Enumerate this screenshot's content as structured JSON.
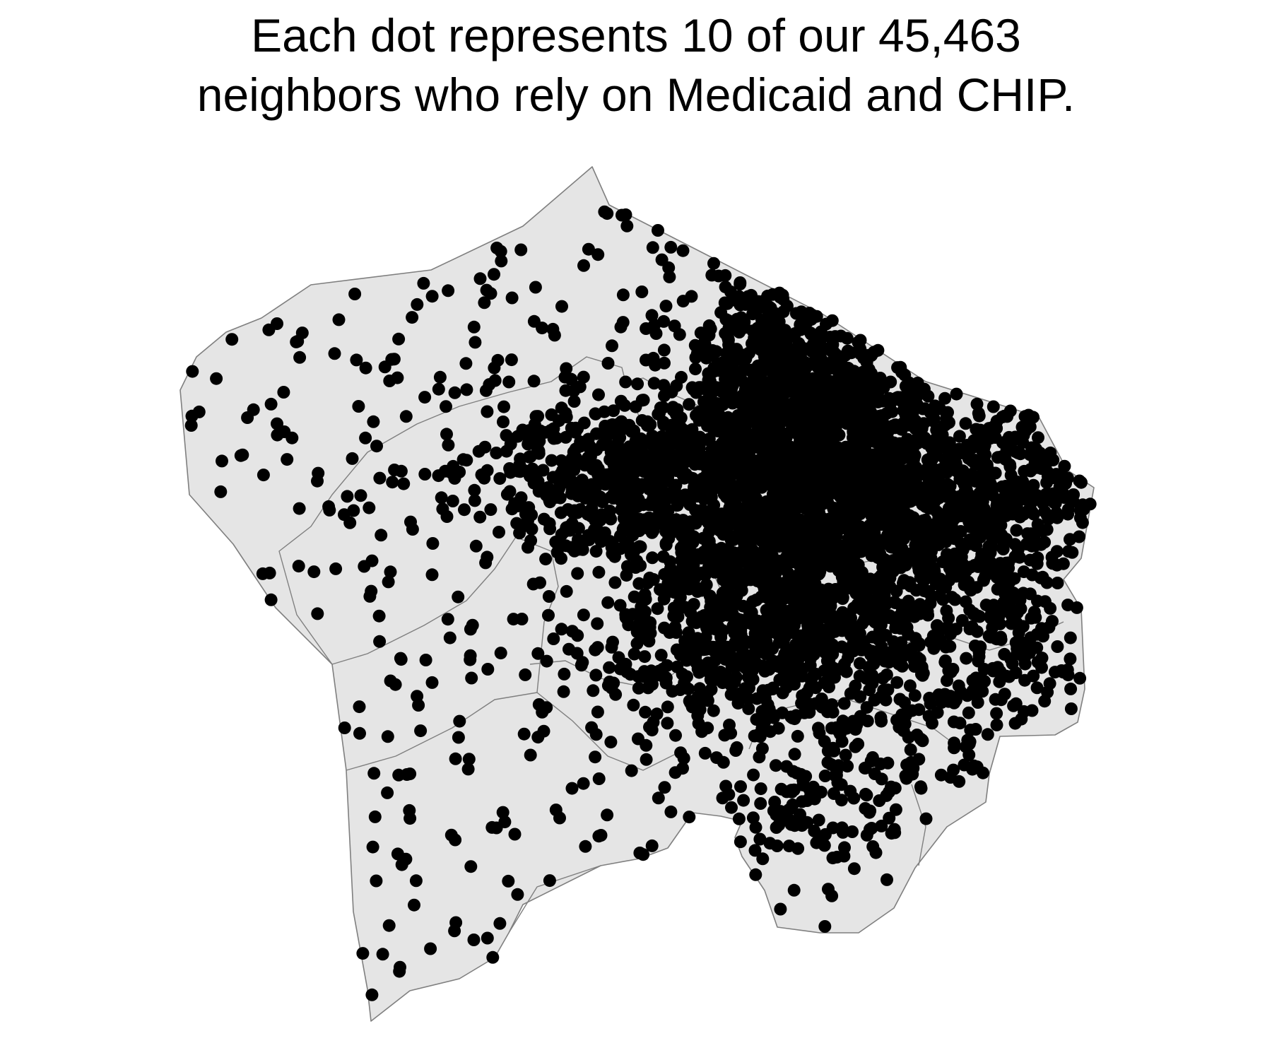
{
  "title": {
    "line1": "Each dot represents 10 of our 45,463",
    "line2": "neighbors who rely on Medicaid and CHIP."
  },
  "map": {
    "type": "dot-density",
    "persons_per_dot": 10,
    "total_population": 45463,
    "dot_count": 4546,
    "region_fill": "#e5e5e5",
    "boundary_color": "#7f7f7f",
    "dot_color": "#000000"
  }
}
